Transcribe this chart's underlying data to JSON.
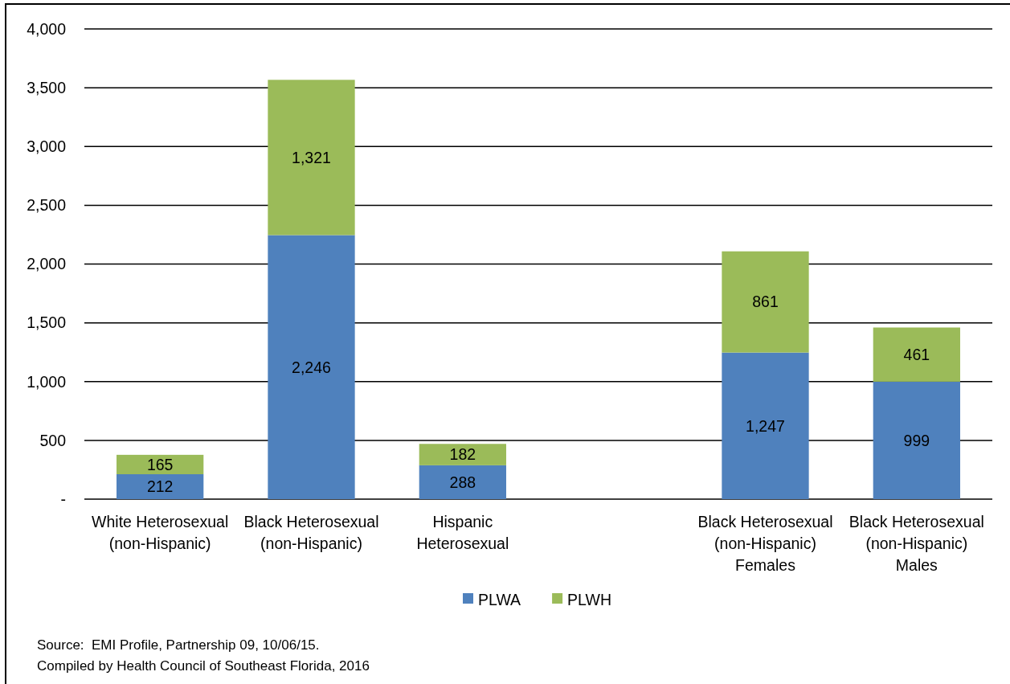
{
  "chart_data": {
    "type": "bar",
    "stacked": true,
    "categories": [
      "White Heterosexual (non-Hispanic)",
      "Black Heterosexual (non-Hispanic)",
      "Hispanic Heterosexual",
      null,
      "Black Heterosexual (non-Hispanic) Females",
      "Black Heterosexual (non-Hispanic) Males"
    ],
    "series": [
      {
        "name": "PLWA",
        "color": "#4f81bd",
        "values": [
          212,
          2246,
          288,
          null,
          1247,
          999
        ],
        "value_labels": [
          "212",
          "2,246",
          "288",
          null,
          "1,247",
          "999"
        ]
      },
      {
        "name": "PLWH",
        "color": "#9bbb59",
        "values": [
          165,
          1321,
          182,
          null,
          861,
          461
        ],
        "value_labels": [
          "165",
          "1,321",
          "182",
          null,
          "861",
          "461"
        ]
      }
    ],
    "ylim": [
      0,
      4000
    ],
    "yticks": [
      {
        "value": 0,
        "label": "-"
      },
      500,
      {
        "value": 1000,
        "label": "1,000"
      },
      {
        "value": 1500,
        "label": "1,500"
      },
      {
        "value": 2000,
        "label": "2,000"
      },
      {
        "value": 2500,
        "label": "2,500"
      },
      {
        "value": 3000,
        "label": "3,000"
      },
      {
        "value": 3500,
        "label": "3,500"
      },
      {
        "value": 4000,
        "label": "4,000"
      }
    ],
    "grid": "y",
    "legend": "bottom",
    "annotations": [
      "Source:  EMI Profile, Partnership 09, 10/06/15.",
      "Compiled by Health Council of Southeast Florida, 2016"
    ]
  }
}
